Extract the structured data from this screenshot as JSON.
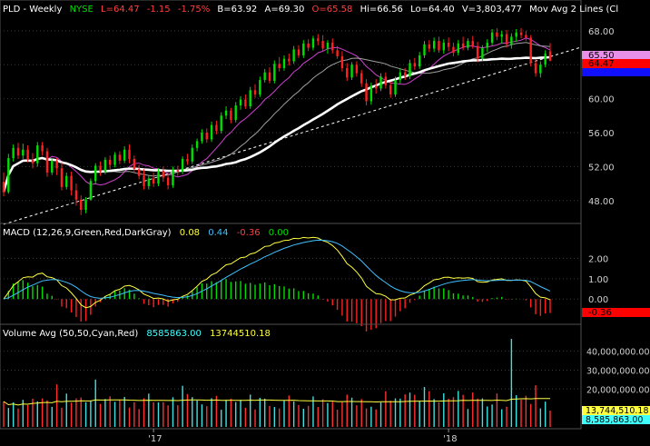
{
  "header": {
    "symbol": "PLD - Weekly",
    "exchange": "NYSE",
    "last": "L=64.47",
    "change": "-1.15",
    "change_pct": "-1.75%",
    "bid": "B=63.92",
    "ask": "A=69.30",
    "open": "O=65.58",
    "high": "Hi=66.56",
    "low": "Lo=64.40",
    "volume": "V=3,803,477",
    "study": "Mov Avg 2 Lines (Cl"
  },
  "macd_header": {
    "label": "MACD (12,26,9,Green,Red,DarkGray)",
    "v1": "0.08",
    "v2": "0.44",
    "v3": "-0.36",
    "v4": "0.00"
  },
  "volume_header": {
    "label": "Volume Avg (50,50,Cyan,Red)",
    "v1": "8585863.00",
    "v2": "13744510.18"
  },
  "price_tags": {
    "ma_upper": "65.50",
    "last": "64.47"
  },
  "macd_tag": "-0.36",
  "volume_tags": {
    "avg": "13,744,510.18",
    "vol": "8,585,863.00"
  },
  "x_axis": {
    "labels": [
      "'17",
      "'18"
    ]
  },
  "colors": {
    "up": "#00e000",
    "down": "#ff2020",
    "ma_fast": "#d040d0",
    "ma_slow": "#a0a0a0",
    "ma_long": "#ffffff",
    "macd": "#ffff40",
    "signal": "#40c0ff",
    "vol_avg": "#ffff40",
    "grid": "#3a3a3a",
    "trendline": "#ffffff"
  },
  "chart_data": [
    {
      "type": "candlestick",
      "panel": "price",
      "yticks": [
        48,
        52,
        56,
        60,
        64,
        68
      ],
      "ylim": [
        45.3,
        69.7
      ],
      "x_labels": [
        "'17",
        "'18"
      ],
      "series_ohlc": [
        [
          50.2,
          51.3,
          48.5,
          49.0
        ],
        [
          49.0,
          53.5,
          48.8,
          53.0
        ],
        [
          53.0,
          54.6,
          52.6,
          54.2
        ],
        [
          54.2,
          54.8,
          52.9,
          53.3
        ],
        [
          53.3,
          54.7,
          52.9,
          54.0
        ],
        [
          54.0,
          54.5,
          52.5,
          52.8
        ],
        [
          52.8,
          53.6,
          51.8,
          52.4
        ],
        [
          52.4,
          54.9,
          52.0,
          54.5
        ],
        [
          54.5,
          54.9,
          53.3,
          53.8
        ],
        [
          53.8,
          54.2,
          50.8,
          51.3
        ],
        [
          51.3,
          53.0,
          51.0,
          52.7
        ],
        [
          52.7,
          53.0,
          51.0,
          51.8
        ],
        [
          51.8,
          52.5,
          49.2,
          49.6
        ],
        [
          49.6,
          51.3,
          49.3,
          50.9
        ],
        [
          50.9,
          51.4,
          48.6,
          49.2
        ],
        [
          49.2,
          50.0,
          47.4,
          48.1
        ],
        [
          48.1,
          48.6,
          46.3,
          46.9
        ],
        [
          46.9,
          48.4,
          46.5,
          48.1
        ],
        [
          48.1,
          50.6,
          48.0,
          50.3
        ],
        [
          50.3,
          52.4,
          49.9,
          52.1
        ],
        [
          52.1,
          52.6,
          50.9,
          51.4
        ],
        [
          51.4,
          53.1,
          51.1,
          52.8
        ],
        [
          52.8,
          53.3,
          51.7,
          52.2
        ],
        [
          52.2,
          53.7,
          51.9,
          53.4
        ],
        [
          53.4,
          53.8,
          52.3,
          52.7
        ],
        [
          52.7,
          54.4,
          52.4,
          54.0
        ],
        [
          54.0,
          54.6,
          52.4,
          52.9
        ],
        [
          52.9,
          53.3,
          51.3,
          51.7
        ],
        [
          51.7,
          52.2,
          50.5,
          50.9
        ],
        [
          50.9,
          51.7,
          49.3,
          49.7
        ],
        [
          49.7,
          51.0,
          49.3,
          50.6
        ],
        [
          50.6,
          51.3,
          49.6,
          50.0
        ],
        [
          50.0,
          51.8,
          49.7,
          51.5
        ],
        [
          51.5,
          52.0,
          50.2,
          50.7
        ],
        [
          50.7,
          51.2,
          49.3,
          49.8
        ],
        [
          49.8,
          52.0,
          49.5,
          51.6
        ],
        [
          51.6,
          52.1,
          50.9,
          51.4
        ],
        [
          51.4,
          53.2,
          51.1,
          52.9
        ],
        [
          52.9,
          53.5,
          52.2,
          52.6
        ],
        [
          52.6,
          54.6,
          52.3,
          54.2
        ],
        [
          54.2,
          55.3,
          53.8,
          55.0
        ],
        [
          55.0,
          56.4,
          54.7,
          56.0
        ],
        [
          56.0,
          56.5,
          54.8,
          55.2
        ],
        [
          55.2,
          57.3,
          54.9,
          56.9
        ],
        [
          56.9,
          57.4,
          55.8,
          56.2
        ],
        [
          56.2,
          58.4,
          55.9,
          58.0
        ],
        [
          58.0,
          59.1,
          57.6,
          58.6
        ],
        [
          58.6,
          58.9,
          57.1,
          57.5
        ],
        [
          57.5,
          59.6,
          57.2,
          59.2
        ],
        [
          59.2,
          60.3,
          58.7,
          59.9
        ],
        [
          59.9,
          60.5,
          58.8,
          59.1
        ],
        [
          59.1,
          61.4,
          58.8,
          61.0
        ],
        [
          61.0,
          61.7,
          60.1,
          60.5
        ],
        [
          60.5,
          62.6,
          60.2,
          62.2
        ],
        [
          62.2,
          63.5,
          61.9,
          63.1
        ],
        [
          63.1,
          63.7,
          61.8,
          62.1
        ],
        [
          62.1,
          64.5,
          61.8,
          64.1
        ],
        [
          64.1,
          64.9,
          63.2,
          63.6
        ],
        [
          63.6,
          65.1,
          63.3,
          64.7
        ],
        [
          64.7,
          65.3,
          63.9,
          64.4
        ],
        [
          64.4,
          66.2,
          64.1,
          65.8
        ],
        [
          65.8,
          66.3,
          64.8,
          65.1
        ],
        [
          65.1,
          66.9,
          64.8,
          66.5
        ],
        [
          66.5,
          67.0,
          65.6,
          66.0
        ],
        [
          66.0,
          67.4,
          65.7,
          67.1
        ],
        [
          67.1,
          67.6,
          66.3,
          66.8
        ],
        [
          66.8,
          67.5,
          65.6,
          65.9
        ],
        [
          65.9,
          66.9,
          65.3,
          66.6
        ],
        [
          66.6,
          67.1,
          65.3,
          65.7
        ],
        [
          65.7,
          66.2,
          64.7,
          65.0
        ],
        [
          65.0,
          65.6,
          63.2,
          63.6
        ],
        [
          63.6,
          64.2,
          62.1,
          62.5
        ],
        [
          62.5,
          64.3,
          62.2,
          64.0
        ],
        [
          64.0,
          64.4,
          62.6,
          63.0
        ],
        [
          63.0,
          63.4,
          61.4,
          61.8
        ],
        [
          61.8,
          62.3,
          59.2,
          59.7
        ],
        [
          59.7,
          61.9,
          59.3,
          61.5
        ],
        [
          61.5,
          62.3,
          60.6,
          61.2
        ],
        [
          61.2,
          63.0,
          60.9,
          62.6
        ],
        [
          62.6,
          63.1,
          61.2,
          61.6
        ],
        [
          61.6,
          62.0,
          60.1,
          60.5
        ],
        [
          60.5,
          62.6,
          60.2,
          62.2
        ],
        [
          62.2,
          63.5,
          61.8,
          63.1
        ],
        [
          63.1,
          63.6,
          62.2,
          62.6
        ],
        [
          62.6,
          64.6,
          62.3,
          64.2
        ],
        [
          64.2,
          64.8,
          63.4,
          63.8
        ],
        [
          63.8,
          65.5,
          63.5,
          65.1
        ],
        [
          65.1,
          66.8,
          64.8,
          66.4
        ],
        [
          66.4,
          66.9,
          65.5,
          65.9
        ],
        [
          65.9,
          67.2,
          65.5,
          66.8
        ],
        [
          66.8,
          67.3,
          65.4,
          65.7
        ],
        [
          65.7,
          67.0,
          65.3,
          66.6
        ],
        [
          66.6,
          67.2,
          65.6,
          66.1
        ],
        [
          66.1,
          66.6,
          65.0,
          65.4
        ],
        [
          65.4,
          66.9,
          65.1,
          66.5
        ],
        [
          66.5,
          67.3,
          65.7,
          66.0
        ],
        [
          66.0,
          67.1,
          65.7,
          66.8
        ],
        [
          66.8,
          67.4,
          65.9,
          66.2
        ],
        [
          66.2,
          66.7,
          64.3,
          64.7
        ],
        [
          64.7,
          66.3,
          64.4,
          66.0
        ],
        [
          66.0,
          67.0,
          65.5,
          66.6
        ],
        [
          66.6,
          68.2,
          66.3,
          67.8
        ],
        [
          67.8,
          68.3,
          66.9,
          67.3
        ],
        [
          67.3,
          68.0,
          66.5,
          67.6
        ],
        [
          67.6,
          68.1,
          66.0,
          66.4
        ],
        [
          66.4,
          67.7,
          65.9,
          67.3
        ],
        [
          67.3,
          68.2,
          66.7,
          67.8
        ],
        [
          67.8,
          68.3,
          67.1,
          67.5
        ],
        [
          67.5,
          68.0,
          66.8,
          67.2
        ],
        [
          67.2,
          67.5,
          63.8,
          64.2
        ],
        [
          64.2,
          64.6,
          62.6,
          63.0
        ],
        [
          63.0,
          64.4,
          62.5,
          64.0
        ],
        [
          64.0,
          65.7,
          63.7,
          65.3
        ],
        [
          65.58,
          66.56,
          64.4,
          64.47
        ]
      ],
      "moving_averages": [
        {
          "color": "#d040d0",
          "period": 10
        },
        {
          "color": "#a0a0a0",
          "period": 20
        },
        {
          "color": "#ffffff",
          "period": 40
        }
      ],
      "trendline": {
        "from": [
          0,
          45.2
        ],
        "to": [
          127,
          67.4
        ],
        "style": "dashed"
      }
    },
    {
      "type": "macd",
      "panel": "macd",
      "yticks": [
        0.0,
        1.0,
        2.0
      ],
      "ylim": [
        -1.15,
        3.0
      ],
      "fast": 12,
      "slow": 26,
      "signal": 9
    },
    {
      "type": "bar",
      "panel": "volume",
      "yticks": [
        20000000,
        30000000,
        40000000
      ],
      "ytick_labels": [
        "20,000,000.00",
        "30,000,000.00",
        "40,000,000.00"
      ],
      "ylim": [
        0,
        47000000
      ],
      "avg_period": 50
    }
  ]
}
